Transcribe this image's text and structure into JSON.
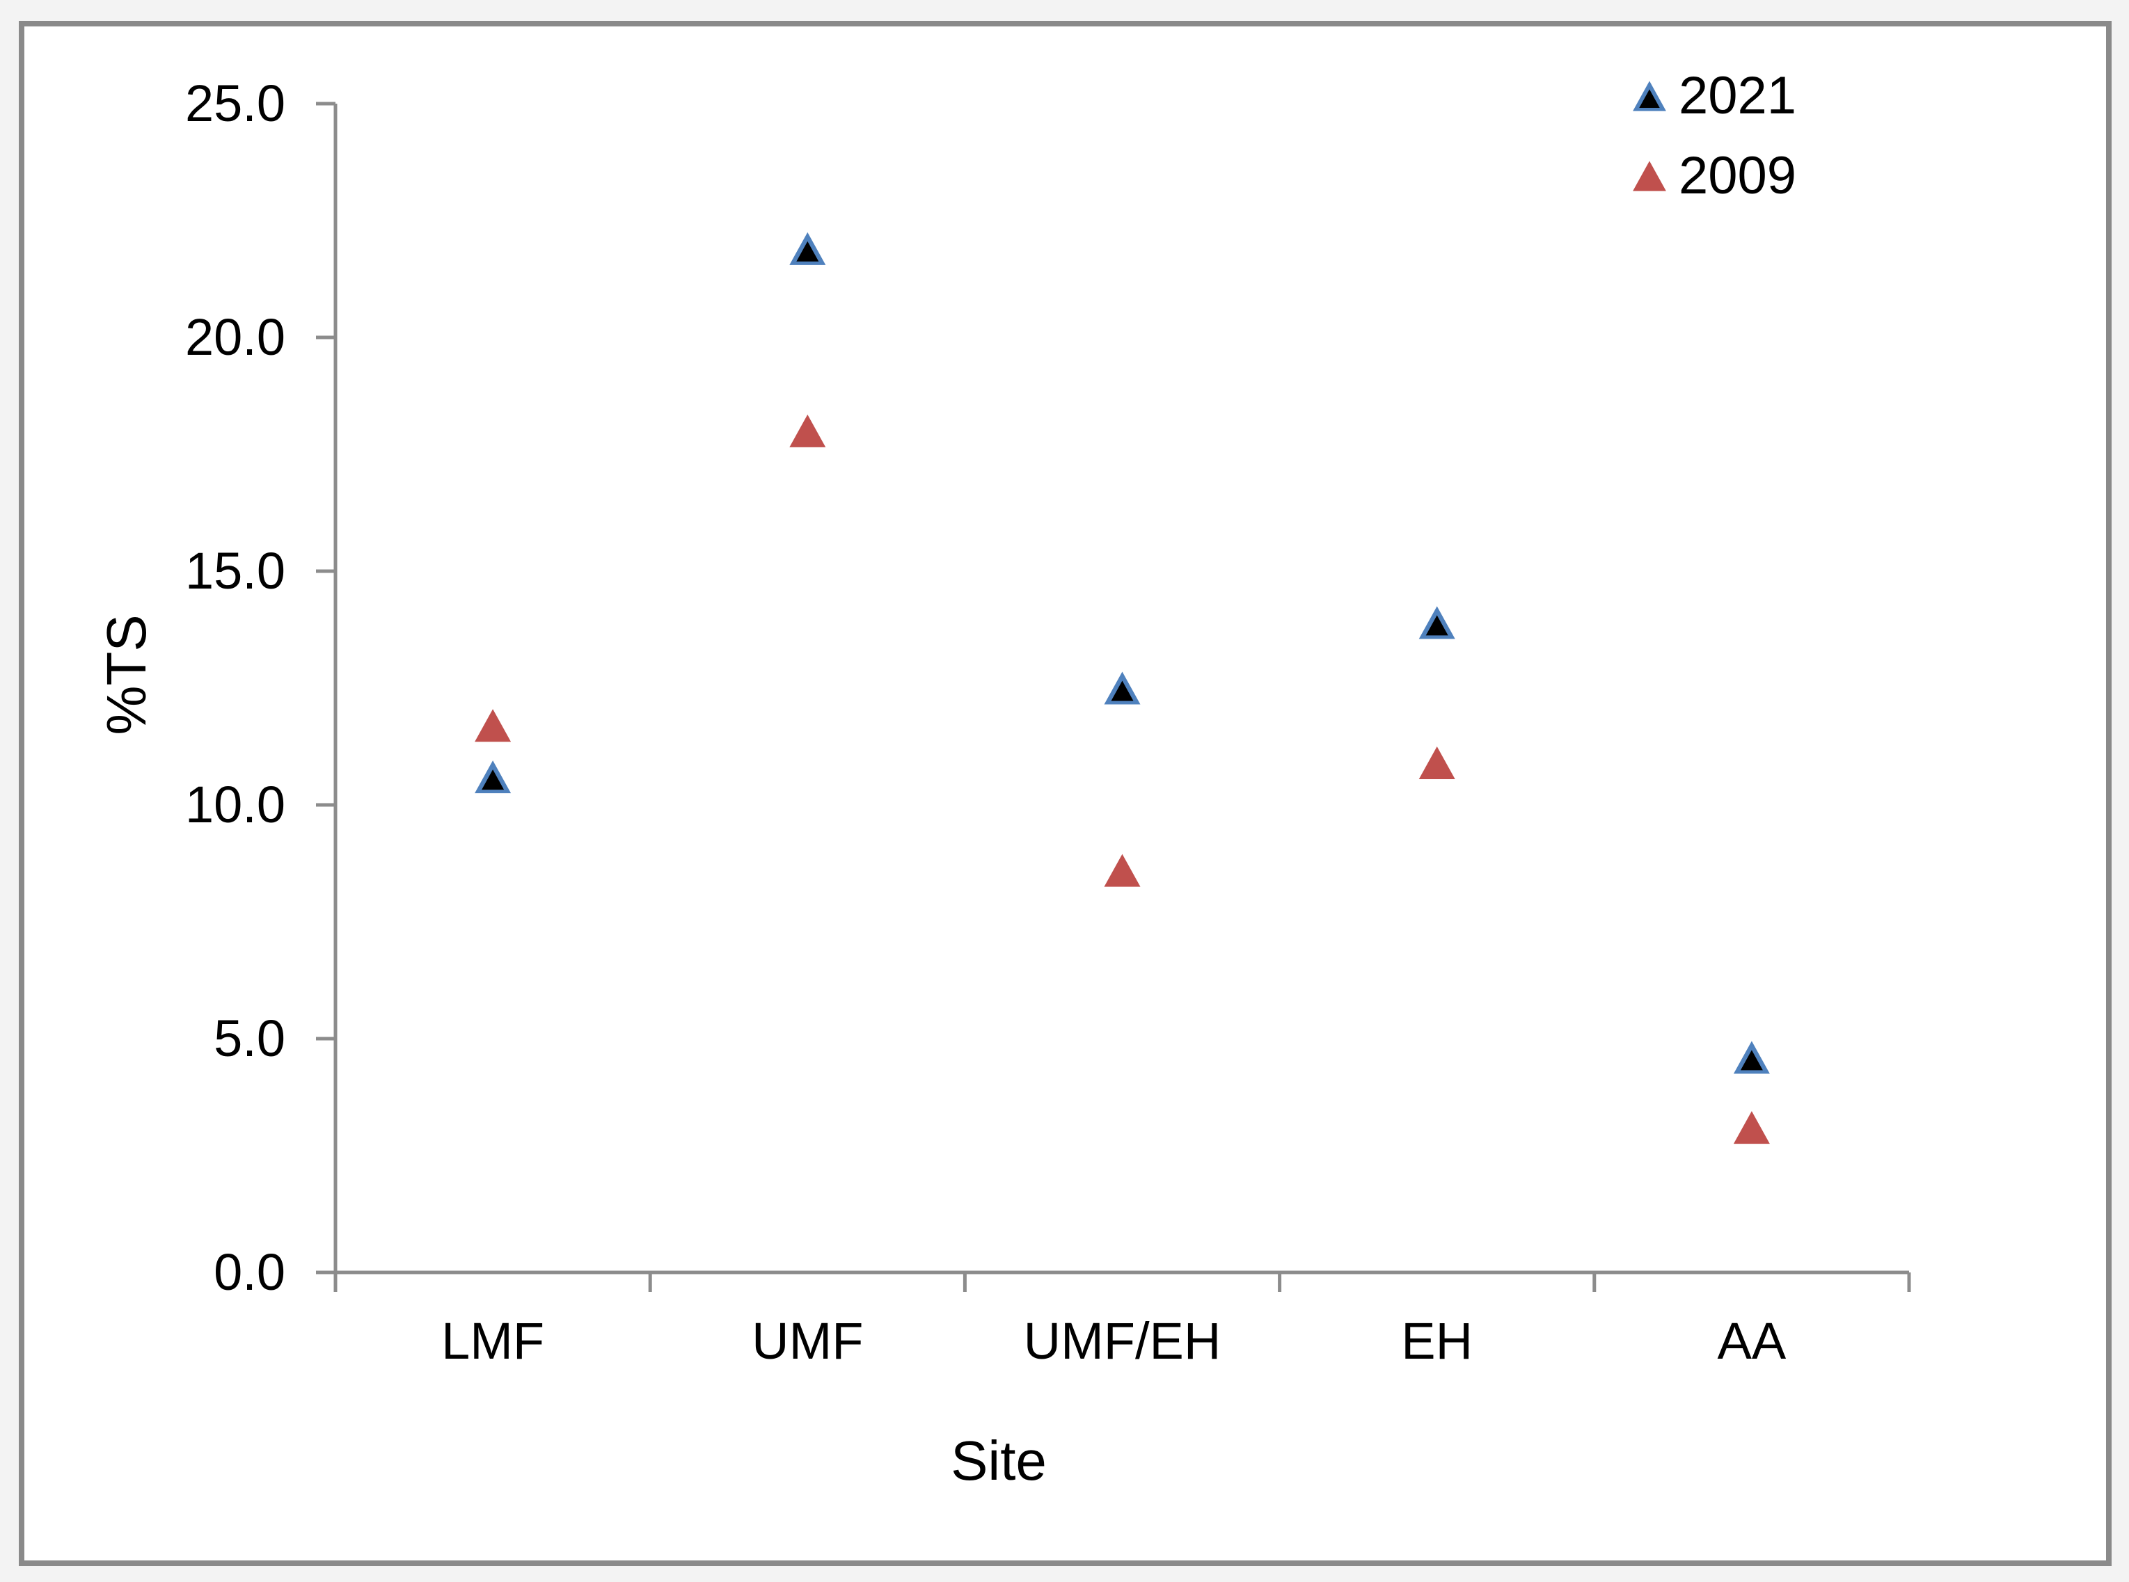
{
  "colors": {
    "page_background": "#f3f3f3",
    "chart_background": "#ffffff",
    "frame_border": "#8a8a8a",
    "axis_line": "#8c8c8c",
    "text": "#000000",
    "series_2021_edge": "#4F81BD",
    "series_2021_fill": "#000000",
    "series_2009_fill": "#C0504D"
  },
  "chart_data": {
    "type": "scatter",
    "title": "",
    "xlabel": "Site",
    "ylabel": "%TS",
    "categories": [
      "LMF",
      "UMF",
      "UMF/EH",
      "EH",
      "AA"
    ],
    "ylim": [
      0,
      25
    ],
    "ytick_step": 5,
    "ytick_labels": [
      "0.0",
      "5.0",
      "10.0",
      "15.0",
      "20.0",
      "25.0"
    ],
    "grid": false,
    "legend_position": "top-right",
    "marker_shape": "triangle",
    "series": [
      {
        "name": "2021",
        "marker": "triangle-black-blue-edge",
        "edge": "#4F81BD",
        "fill": "#000000",
        "values": [
          10.6,
          21.9,
          12.5,
          13.9,
          4.6
        ]
      },
      {
        "name": "2009",
        "marker": "triangle-red",
        "edge": "#C0504D",
        "fill": "#C0504D",
        "values": [
          11.7,
          18.0,
          8.6,
          10.9,
          3.1
        ]
      }
    ]
  }
}
